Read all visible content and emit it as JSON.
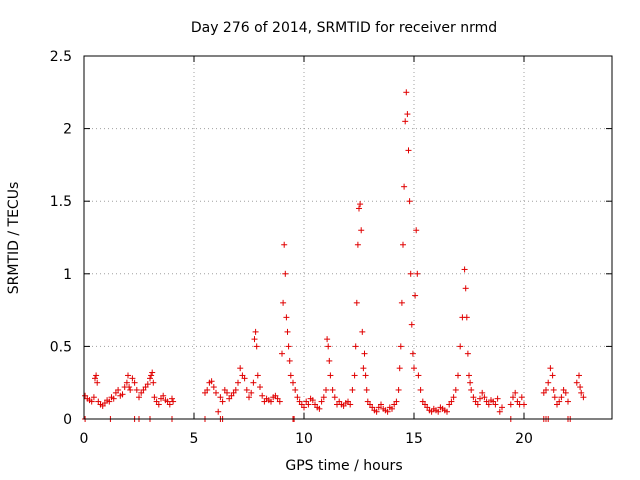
{
  "chart_data": {
    "type": "scatter",
    "title": "Day 276 of 2014, SRMTID for receiver nrmd",
    "xlabel": "GPS time / hours",
    "ylabel": "SRMTID / TECUs",
    "xlim": [
      0,
      24
    ],
    "ylim": [
      0,
      2.5
    ],
    "xticks": [
      0,
      5,
      10,
      15,
      20
    ],
    "yticks": [
      0,
      0.5,
      1,
      1.5,
      2,
      2.5
    ],
    "x_tick_labels": [
      "0",
      "5",
      "10",
      "15",
      "20"
    ],
    "y_tick_labels": [
      "0",
      "0.5",
      "1",
      "1.5",
      "2",
      "2.5"
    ],
    "grid": true,
    "marker": "+",
    "color": "#e00000",
    "series": [
      {
        "name": "SRMTID",
        "x": [
          0.05,
          0.15,
          0.25,
          0.35,
          0.45,
          0.5,
          0.55,
          0.6,
          0.65,
          0.75,
          0.85,
          0.95,
          1.05,
          1.15,
          1.25,
          1.35,
          1.45,
          1.55,
          1.65,
          1.75,
          1.85,
          1.95,
          2.0,
          2.05,
          2.1,
          2.2,
          2.3,
          2.4,
          2.5,
          2.6,
          2.7,
          2.8,
          2.9,
          3.0,
          3.05,
          3.1,
          3.15,
          3.2,
          3.3,
          3.4,
          3.5,
          3.6,
          3.7,
          3.8,
          3.9,
          4.0,
          4.05,
          5.5,
          5.6,
          5.7,
          5.8,
          5.9,
          6.0,
          6.1,
          6.2,
          6.3,
          6.4,
          6.5,
          6.6,
          6.7,
          6.8,
          6.9,
          7.0,
          7.1,
          7.2,
          7.3,
          7.4,
          7.5,
          7.6,
          7.7,
          7.75,
          7.8,
          7.85,
          7.9,
          8.0,
          8.1,
          8.2,
          8.3,
          8.4,
          8.5,
          8.6,
          8.7,
          8.8,
          8.9,
          9.0,
          9.05,
          9.1,
          9.15,
          9.2,
          9.25,
          9.3,
          9.35,
          9.4,
          9.5,
          9.6,
          9.7,
          9.8,
          9.9,
          10.0,
          10.1,
          10.2,
          10.3,
          10.4,
          10.5,
          10.6,
          10.7,
          10.8,
          10.9,
          11.0,
          11.05,
          11.1,
          11.15,
          11.2,
          11.3,
          11.4,
          11.5,
          11.6,
          11.7,
          11.8,
          11.9,
          12.0,
          12.1,
          12.2,
          12.3,
          12.35,
          12.4,
          12.45,
          12.5,
          12.55,
          12.6,
          12.65,
          12.7,
          12.75,
          12.8,
          12.85,
          12.9,
          13.0,
          13.1,
          13.2,
          13.3,
          13.4,
          13.5,
          13.6,
          13.7,
          13.8,
          13.9,
          14.0,
          14.1,
          14.2,
          14.3,
          14.35,
          14.4,
          14.45,
          14.5,
          14.55,
          14.6,
          14.65,
          14.7,
          14.75,
          14.8,
          14.85,
          14.9,
          14.95,
          15.0,
          15.05,
          15.1,
          15.15,
          15.2,
          15.3,
          15.4,
          15.5,
          15.6,
          15.7,
          15.8,
          15.9,
          16.0,
          16.1,
          16.2,
          16.3,
          16.4,
          16.5,
          16.6,
          16.7,
          16.8,
          16.9,
          17.0,
          17.1,
          17.2,
          17.3,
          17.35,
          17.4,
          17.45,
          17.5,
          17.55,
          17.6,
          17.7,
          17.8,
          17.9,
          18.0,
          18.1,
          18.2,
          18.3,
          18.4,
          18.5,
          18.6,
          18.7,
          18.8,
          18.9,
          19.0,
          19.4,
          19.5,
          19.6,
          19.7,
          19.8,
          19.9,
          20.0,
          20.9,
          21.0,
          21.1,
          21.2,
          21.3,
          21.35,
          21.4,
          21.5,
          21.6,
          21.7,
          21.8,
          21.9,
          22.0,
          22.4,
          22.5,
          22.55,
          22.6,
          22.7,
          0.05,
          1.2,
          2.3,
          2.5,
          3.0,
          4.0,
          5.5,
          6.2,
          6.3,
          9.5,
          9.55,
          19.4,
          20.9,
          21.0,
          21.1,
          22.0,
          22.1
        ],
        "y": [
          0.16,
          0.14,
          0.13,
          0.12,
          0.15,
          0.28,
          0.3,
          0.25,
          0.12,
          0.1,
          0.09,
          0.11,
          0.13,
          0.12,
          0.15,
          0.14,
          0.18,
          0.2,
          0.16,
          0.17,
          0.22,
          0.25,
          0.3,
          0.22,
          0.2,
          0.28,
          0.25,
          0.2,
          0.15,
          0.18,
          0.2,
          0.22,
          0.24,
          0.28,
          0.3,
          0.32,
          0.25,
          0.15,
          0.12,
          0.1,
          0.14,
          0.16,
          0.13,
          0.12,
          0.1,
          0.14,
          0.12,
          0.18,
          0.2,
          0.25,
          0.26,
          0.22,
          0.18,
          0.05,
          0.15,
          0.12,
          0.2,
          0.18,
          0.14,
          0.16,
          0.18,
          0.2,
          0.25,
          0.35,
          0.3,
          0.28,
          0.2,
          0.15,
          0.18,
          0.25,
          0.55,
          0.6,
          0.5,
          0.3,
          0.22,
          0.16,
          0.12,
          0.14,
          0.13,
          0.12,
          0.15,
          0.16,
          0.14,
          0.12,
          0.45,
          0.8,
          1.2,
          1.0,
          0.7,
          0.6,
          0.5,
          0.4,
          0.3,
          0.25,
          0.2,
          0.15,
          0.12,
          0.1,
          0.08,
          0.12,
          0.1,
          0.14,
          0.13,
          0.1,
          0.08,
          0.07,
          0.12,
          0.15,
          0.2,
          0.55,
          0.5,
          0.4,
          0.3,
          0.2,
          0.15,
          0.1,
          0.12,
          0.1,
          0.09,
          0.11,
          0.12,
          0.1,
          0.2,
          0.3,
          0.5,
          0.8,
          1.2,
          1.45,
          1.48,
          1.3,
          0.6,
          0.35,
          0.45,
          0.3,
          0.2,
          0.12,
          0.1,
          0.08,
          0.06,
          0.05,
          0.08,
          0.1,
          0.07,
          0.06,
          0.05,
          0.08,
          0.07,
          0.1,
          0.12,
          0.2,
          0.35,
          0.5,
          0.8,
          1.2,
          1.6,
          2.05,
          2.25,
          2.1,
          1.85,
          1.5,
          1.0,
          0.65,
          0.45,
          0.35,
          0.85,
          1.3,
          1.0,
          0.3,
          0.2,
          0.12,
          0.1,
          0.08,
          0.06,
          0.05,
          0.07,
          0.06,
          0.05,
          0.08,
          0.07,
          0.06,
          0.05,
          0.1,
          0.12,
          0.15,
          0.2,
          0.3,
          0.5,
          0.7,
          1.03,
          0.9,
          0.7,
          0.45,
          0.3,
          0.25,
          0.2,
          0.15,
          0.12,
          0.1,
          0.14,
          0.18,
          0.15,
          0.12,
          0.1,
          0.13,
          0.12,
          0.1,
          0.14,
          0.05,
          0.08,
          0.1,
          0.15,
          0.18,
          0.12,
          0.1,
          0.15,
          0.1,
          0.18,
          0.2,
          0.25,
          0.35,
          0.3,
          0.2,
          0.15,
          0.1,
          0.12,
          0.15,
          0.2,
          0.18,
          0.12,
          0.25,
          0.3,
          0.22,
          0.18,
          0.15,
          0.0,
          0.0,
          0.0,
          0.0,
          0.0,
          0.0,
          0.0,
          0.0,
          0.0,
          0.0,
          0.0,
          0.0,
          0.0,
          0.0,
          0.0,
          0.0,
          0.0
        ]
      }
    ]
  }
}
